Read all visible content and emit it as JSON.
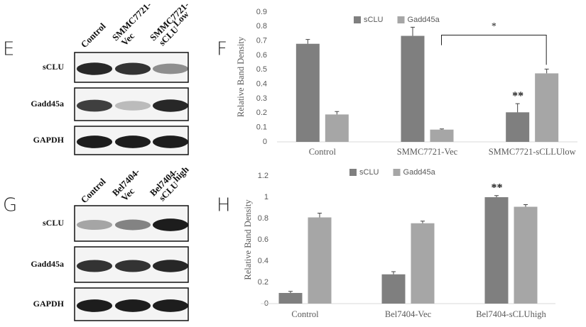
{
  "blots": [
    {
      "panel": "E",
      "lanes": [
        {
          "text": [
            "Control"
          ]
        },
        {
          "text": [
            "SMMC7721-",
            "Vec"
          ]
        },
        {
          "text": [
            "SMMC7721-",
            "sCLU"
          ],
          "sup": "Low"
        }
      ],
      "rows": [
        "sCLU",
        "Gadd45a",
        "GAPDH"
      ]
    },
    {
      "panel": "G",
      "lanes": [
        {
          "text": [
            "Control"
          ]
        },
        {
          "text": [
            "Bel7404-",
            "Vec"
          ]
        },
        {
          "text": [
            "Bel7404-",
            "sCLU"
          ],
          "sup": "high"
        }
      ],
      "rows": [
        "sCLU",
        "Gadd45a",
        "GAPDH"
      ]
    }
  ],
  "chart_data": [
    {
      "type": "bar",
      "panel": "F",
      "y_label": "Relative Band Density",
      "categories": [
        "Control",
        "SMMC7721-Vec",
        "SMMC7721-sCLLUlow"
      ],
      "series": [
        {
          "name": "sCLU",
          "color": "#7f7f7f",
          "values": [
            0.68,
            0.735,
            0.205
          ],
          "errors": [
            0.03,
            0.06,
            0.06
          ]
        },
        {
          "name": "Gadd45a",
          "color": "#a6a6a6",
          "values": [
            0.19,
            0.085,
            0.475
          ],
          "errors": [
            0.02,
            0.005,
            0.03
          ]
        }
      ],
      "ylim": [
        0,
        0.9
      ],
      "yticks": [
        0,
        0.1,
        0.2,
        0.3,
        0.4,
        0.5,
        0.6,
        0.7,
        0.8,
        0.9
      ],
      "annotations": [
        "**",
        "*"
      ]
    },
    {
      "type": "bar",
      "panel": "H",
      "y_label": "Relative Band Density",
      "categories": [
        "Control",
        "Bel7404-Vec",
        "Bel7404-sCLUhigh"
      ],
      "series": [
        {
          "name": "sCLU",
          "color": "#7f7f7f",
          "values": [
            0.1,
            0.275,
            1.0
          ],
          "errors": [
            0.015,
            0.025,
            0.015
          ]
        },
        {
          "name": "Gadd45a",
          "color": "#a6a6a6",
          "values": [
            0.81,
            0.755,
            0.91
          ],
          "errors": [
            0.04,
            0.02,
            0.02
          ]
        }
      ],
      "ylim": [
        0,
        1.2
      ],
      "yticks": [
        0,
        0.2,
        0.4,
        0.6,
        0.8,
        1,
        1.2
      ],
      "annotations": [
        "**"
      ]
    }
  ]
}
